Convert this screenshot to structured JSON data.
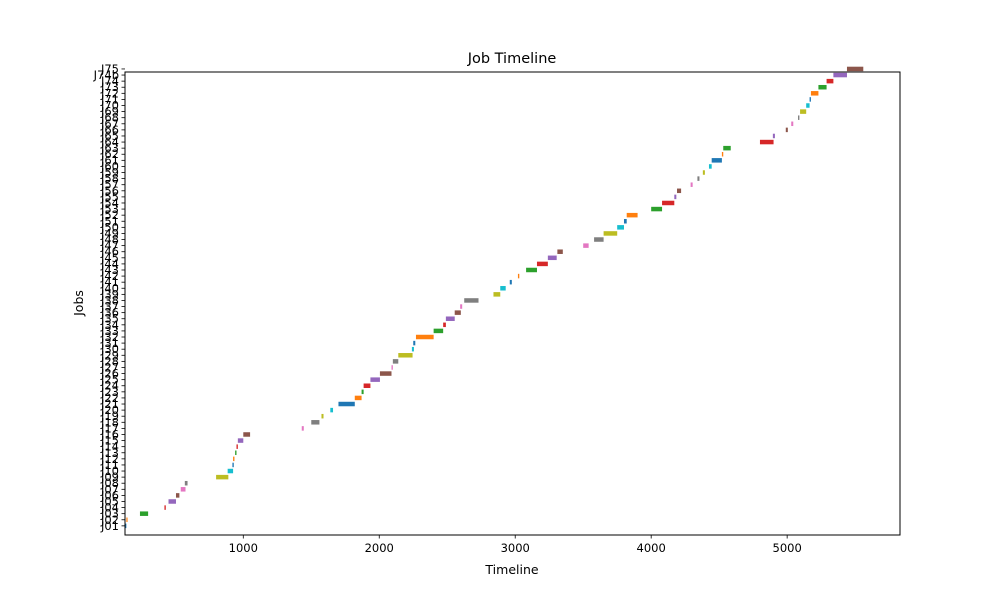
{
  "chart_data": {
    "type": "bar",
    "orientation": "horizontal-gantt",
    "title": "Job Timeline",
    "xlabel": "Timeline",
    "ylabel": "Jobs",
    "xlim": [
      130,
      5830
    ],
    "ylim": [
      -1.5,
      74.5
    ],
    "xticks": [
      1000,
      2000,
      3000,
      4000,
      5000
    ],
    "grid": false,
    "colors": [
      "#1f77b4",
      "#ff7f0e",
      "#2ca02c",
      "#d62728",
      "#9467bd",
      "#8c564b",
      "#e377c2",
      "#7f7f7f",
      "#bcbd22",
      "#17becf"
    ],
    "jobs": [
      {
        "label": "J01",
        "start": 130,
        "end": 140
      },
      {
        "label": "J02",
        "start": 140,
        "end": 140
      },
      {
        "label": "J03",
        "start": 240,
        "end": 300
      },
      {
        "label": "J04",
        "start": 420,
        "end": 430
      },
      {
        "label": "J05",
        "start": 450,
        "end": 505
      },
      {
        "label": "J06",
        "start": 505,
        "end": 530
      },
      {
        "label": "J07",
        "start": 540,
        "end": 575
      },
      {
        "label": "J08",
        "start": 570,
        "end": 590
      },
      {
        "label": "J09",
        "start": 800,
        "end": 890
      },
      {
        "label": "J10",
        "start": 885,
        "end": 925
      },
      {
        "label": "J11",
        "start": 920,
        "end": 930
      },
      {
        "label": "J12",
        "start": 925,
        "end": 935
      },
      {
        "label": "J13",
        "start": 940,
        "end": 950
      },
      {
        "label": "J14",
        "start": 950,
        "end": 960
      },
      {
        "label": "J15",
        "start": 960,
        "end": 1000
      },
      {
        "label": "J16",
        "start": 1000,
        "end": 1050
      },
      {
        "label": "J17",
        "start": 1430,
        "end": 1445
      },
      {
        "label": "J18",
        "start": 1500,
        "end": 1560
      },
      {
        "label": "J19",
        "start": 1575,
        "end": 1590
      },
      {
        "label": "J20",
        "start": 1640,
        "end": 1660
      },
      {
        "label": "J21",
        "start": 1700,
        "end": 1820
      },
      {
        "label": "J22",
        "start": 1820,
        "end": 1870
      },
      {
        "label": "J23",
        "start": 1870,
        "end": 1885
      },
      {
        "label": "J24",
        "start": 1885,
        "end": 1935
      },
      {
        "label": "J25",
        "start": 1935,
        "end": 2005
      },
      {
        "label": "J26",
        "start": 2005,
        "end": 2090
      },
      {
        "label": "J27",
        "start": 2090,
        "end": 2100
      },
      {
        "label": "J28",
        "start": 2100,
        "end": 2140
      },
      {
        "label": "J29",
        "start": 2140,
        "end": 2245
      },
      {
        "label": "J30",
        "start": 2240,
        "end": 2255
      },
      {
        "label": "J31",
        "start": 2250,
        "end": 2265
      },
      {
        "label": "J32",
        "start": 2270,
        "end": 2400
      },
      {
        "label": "J33",
        "start": 2400,
        "end": 2470
      },
      {
        "label": "J34",
        "start": 2470,
        "end": 2490
      },
      {
        "label": "J35",
        "start": 2490,
        "end": 2555
      },
      {
        "label": "J36",
        "start": 2555,
        "end": 2600
      },
      {
        "label": "J37",
        "start": 2595,
        "end": 2610
      },
      {
        "label": "J38",
        "start": 2625,
        "end": 2730
      },
      {
        "label": "J39",
        "start": 2840,
        "end": 2890
      },
      {
        "label": "J40",
        "start": 2890,
        "end": 2930
      },
      {
        "label": "J41",
        "start": 2960,
        "end": 2975
      },
      {
        "label": "J42",
        "start": 3020,
        "end": 3030
      },
      {
        "label": "J43",
        "start": 3080,
        "end": 3160
      },
      {
        "label": "J44",
        "start": 3160,
        "end": 3240
      },
      {
        "label": "J45",
        "start": 3240,
        "end": 3305
      },
      {
        "label": "J46",
        "start": 3310,
        "end": 3350
      },
      {
        "label": "J47",
        "start": 3500,
        "end": 3540
      },
      {
        "label": "J48",
        "start": 3580,
        "end": 3650
      },
      {
        "label": "J49",
        "start": 3650,
        "end": 3750
      },
      {
        "label": "J50",
        "start": 3750,
        "end": 3800
      },
      {
        "label": "J51",
        "start": 3800,
        "end": 3820
      },
      {
        "label": "J52",
        "start": 3820,
        "end": 3900
      },
      {
        "label": "J53",
        "start": 4000,
        "end": 4080
      },
      {
        "label": "J54",
        "start": 4080,
        "end": 4170
      },
      {
        "label": "J55",
        "start": 4170,
        "end": 4185
      },
      {
        "label": "J56",
        "start": 4190,
        "end": 4220
      },
      {
        "label": "J57",
        "start": 4290,
        "end": 4305
      },
      {
        "label": "J58",
        "start": 4340,
        "end": 4355
      },
      {
        "label": "J59",
        "start": 4380,
        "end": 4395
      },
      {
        "label": "J60",
        "start": 4425,
        "end": 4445
      },
      {
        "label": "J61",
        "start": 4445,
        "end": 4520
      },
      {
        "label": "J62",
        "start": 4520,
        "end": 4530
      },
      {
        "label": "J63",
        "start": 4530,
        "end": 4585
      },
      {
        "label": "J64",
        "start": 4800,
        "end": 4900
      },
      {
        "label": "J65",
        "start": 4895,
        "end": 4910
      },
      {
        "label": "J66",
        "start": 4990,
        "end": 5005
      },
      {
        "label": "J67",
        "start": 5030,
        "end": 5045
      },
      {
        "label": "J68",
        "start": 5080,
        "end": 5090
      },
      {
        "label": "J69",
        "start": 5095,
        "end": 5140
      },
      {
        "label": "J70",
        "start": 5140,
        "end": 5165
      },
      {
        "label": "J71",
        "start": 5165,
        "end": 5175
      },
      {
        "label": "J72",
        "start": 5175,
        "end": 5230
      },
      {
        "label": "J73",
        "start": 5230,
        "end": 5290
      },
      {
        "label": "J74",
        "start": 5290,
        "end": 5340
      },
      {
        "label": "J74b",
        "start": 5340,
        "end": 5440
      },
      {
        "label": "J75",
        "start": 5440,
        "end": 5560
      }
    ]
  }
}
